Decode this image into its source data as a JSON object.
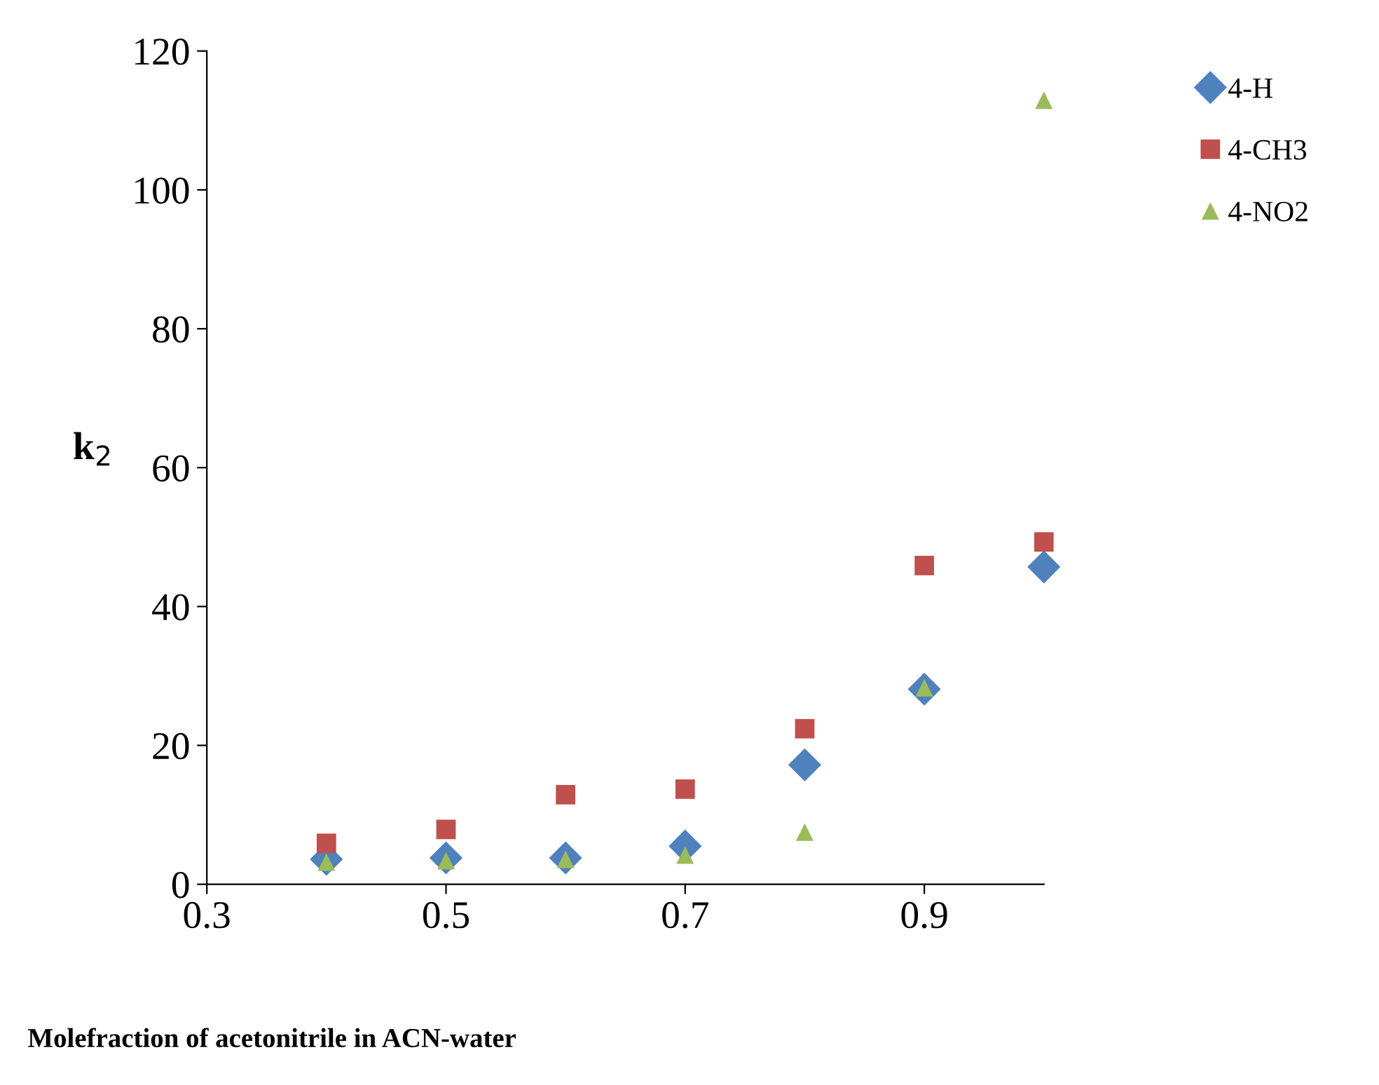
{
  "chart_data": {
    "type": "scatter",
    "xlabel": "Molefraction of acetonitrile in ACN-water",
    "ylabel": "k$_{2}$",
    "x": [
      0.4,
      0.5,
      0.6,
      0.7,
      0.8,
      0.9,
      1.0
    ],
    "series": [
      {
        "name": "4-H",
        "color": "#4f81bd",
        "marker": "diamond",
        "values": [
          3.6,
          3.8,
          3.8,
          5.5,
          17.2,
          28.1,
          45.7
        ]
      },
      {
        "name": "4-CH3",
        "color": "#c0504d",
        "marker": "square",
        "values": [
          5.9,
          7.9,
          12.9,
          13.7,
          22.4,
          45.9,
          49.3
        ]
      },
      {
        "name": "4-NO2",
        "color": "#9bbb59",
        "marker": "triangle",
        "values": [
          3.2,
          3.4,
          3.6,
          4.2,
          7.5,
          28.3,
          112.9
        ]
      }
    ],
    "xlim": [
      0.3,
      1.0
    ],
    "xticks": [
      0.3,
      0.5,
      0.7,
      0.9
    ],
    "ylim": [
      0,
      120
    ],
    "yticks": [
      0,
      20,
      40,
      60,
      80,
      100,
      120
    ],
    "grid": false,
    "legend": "top right"
  }
}
